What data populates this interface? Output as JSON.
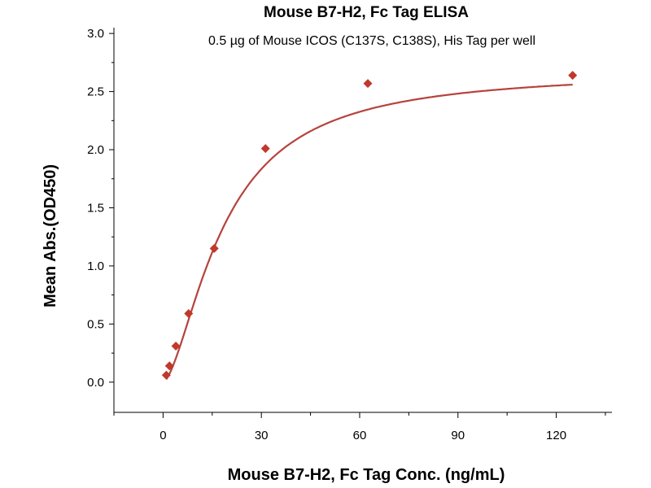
{
  "chart_data": {
    "type": "scatter",
    "title": "Mouse B7-H2, Fc Tag ELISA",
    "subtitle": "0.5 µg of Mouse ICOS (C137S, C138S), His Tag per well",
    "xlabel": "Mouse B7-H2, Fc Tag Conc. (ng/mL)",
    "ylabel": "Mean Abs.(OD450)",
    "xlim": [
      -15,
      137
    ],
    "ylim": [
      -0.26,
      3.05
    ],
    "xticks": [
      "0",
      "30",
      "60",
      "90",
      "120"
    ],
    "xtick_values": [
      0,
      30,
      60,
      90,
      120
    ],
    "yticks": [
      "0.0",
      "0.5",
      "1.0",
      "1.5",
      "2.0",
      "2.5",
      "3.0"
    ],
    "ytick_values": [
      0,
      0.5,
      1.0,
      1.5,
      2.0,
      2.5,
      3.0
    ],
    "grid": false,
    "points": {
      "x": [
        0.98,
        1.95,
        3.9,
        7.8,
        15.6,
        31.25,
        62.5,
        125
      ],
      "y": [
        0.06,
        0.14,
        0.31,
        0.59,
        1.15,
        2.01,
        2.57,
        2.64
      ]
    },
    "fit": {
      "model": "4PL",
      "bottom": 0,
      "top": 2.68,
      "ec50": 18.5,
      "hill": 1.6
    },
    "colors": {
      "marker": "#c0392b",
      "line": "#b5433c"
    }
  }
}
